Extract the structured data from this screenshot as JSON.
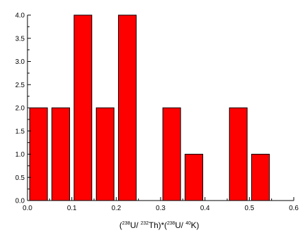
{
  "chart_data": {
    "type": "bar",
    "title": "",
    "ylabel": "",
    "xlabel": "(238U/ 232Th)*(238U/ 40K)",
    "xlabel_parts": [
      {
        "t": "(",
        "sup": false
      },
      {
        "t": "238",
        "sup": true
      },
      {
        "t": "U/ ",
        "sup": false
      },
      {
        "t": "232",
        "sup": true
      },
      {
        "t": "Th)*(",
        "sup": false
      },
      {
        "t": "238",
        "sup": true
      },
      {
        "t": "U/ ",
        "sup": false
      },
      {
        "t": "40",
        "sup": true
      },
      {
        "t": "K)",
        "sup": false
      }
    ],
    "xlim": [
      0.0,
      0.6
    ],
    "ylim": [
      0.0,
      4.0
    ],
    "x_ticks": [
      "0.0",
      "0.1",
      "0.2",
      "0.3",
      "0.4",
      "0.5",
      "0.6"
    ],
    "y_ticks": [
      "0.0",
      "0.5",
      "1.0",
      "1.5",
      "2.0",
      "2.5",
      "3.0",
      "3.5",
      "4.0"
    ],
    "bar_width": 0.04,
    "bars": [
      {
        "x": 0.025,
        "value": 2
      },
      {
        "x": 0.075,
        "value": 2
      },
      {
        "x": 0.125,
        "value": 4
      },
      {
        "x": 0.175,
        "value": 2
      },
      {
        "x": 0.225,
        "value": 4
      },
      {
        "x": 0.325,
        "value": 2
      },
      {
        "x": 0.375,
        "value": 1
      },
      {
        "x": 0.475,
        "value": 2
      },
      {
        "x": 0.525,
        "value": 1
      }
    ],
    "bar_color": "#ff0000",
    "edge_color": "#000000",
    "grid": false,
    "legend": "none"
  }
}
